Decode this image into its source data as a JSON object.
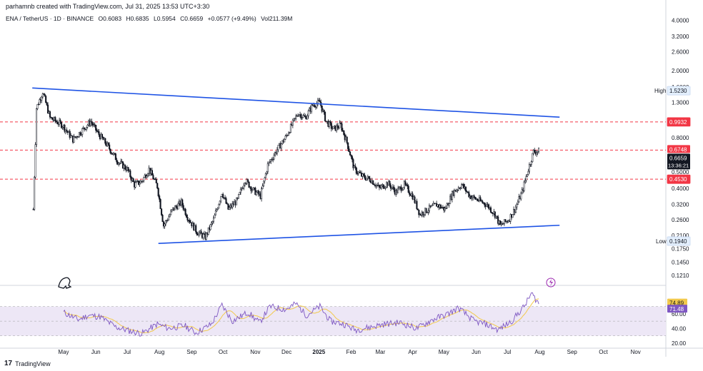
{
  "header": {
    "created_by": "parhamnb created with TradingView.com, Jul 31, 2025 13:53 UTC+3:30",
    "symbol": "ENA / TetherUS · 1D · BINANCE",
    "open": "O0.6083",
    "high": "H0.6835",
    "low": "L0.5954",
    "close": "C0.6659",
    "change": "+0.0577 (+9.49%)",
    "volume": "Vol211.39M"
  },
  "footer": {
    "brand": "TradingView"
  },
  "price_axis": {
    "ticks": [
      "4.0000",
      "3.2000",
      "2.6000",
      "2.0000",
      "1.6000",
      "1.3000",
      "0.8000",
      "0.5000",
      "0.4000",
      "0.3200",
      "0.2600",
      "0.2100",
      "0.1750",
      "0.1450",
      "0.1210"
    ]
  },
  "time_axis": {
    "ticks": [
      "May",
      "Jun",
      "Jul",
      "Aug",
      "Sep",
      "Oct",
      "Nov",
      "Dec",
      "2025",
      "Feb",
      "Mar",
      "Apr",
      "May",
      "Jun",
      "Jul",
      "Aug",
      "Sep",
      "Oct",
      "Nov"
    ]
  },
  "labels": {
    "high_label": "High",
    "high_value": "1.5230",
    "low_label": "Low",
    "low_value": "0.1940",
    "level_1": "0.9932",
    "level_2": "0.6748",
    "level_3": "0.4530",
    "last_price": "0.6659",
    "countdown": "13:36:21"
  },
  "rsi_axis": {
    "ticks": [
      "60.00",
      "40.00",
      "20.00"
    ],
    "rsi_value": "74.89",
    "ma_value": "71.48"
  },
  "colors": {
    "trendline": "#1e53e5",
    "level": "#f23645",
    "candle": "#131722",
    "rsi": "#7e57c2",
    "rsi_ma": "#f2c94c",
    "rsi_band": "#ede7f6"
  },
  "chart_data": {
    "type": "candlestick",
    "symbol": "ENA / TetherUS",
    "interval": "1D",
    "scale": "log",
    "ylim": [
      0.11,
      4.6
    ],
    "horizontal_levels": [
      0.9932,
      0.6748,
      0.453
    ],
    "high": 1.523,
    "low": 0.194,
    "last": {
      "open": 0.6083,
      "high": 0.6835,
      "low": 0.5954,
      "close": 0.6659,
      "change": 0.0577,
      "change_pct": 9.49
    },
    "trendlines": [
      {
        "name": "upper",
        "from": [
          "2024-04-01",
          1.58
        ],
        "to": [
          "2025-08-20",
          1.06
        ]
      },
      {
        "name": "lower",
        "from": [
          "2024-07-31",
          0.188
        ],
        "to": [
          "2025-08-20",
          0.241
        ]
      }
    ],
    "close_path": [
      [
        "2024-04-02",
        0.3
      ],
      [
        "2024-04-05",
        1.2
      ],
      [
        "2024-04-11",
        1.5
      ],
      [
        "2024-04-18",
        1.05
      ],
      [
        "2024-04-30",
        0.95
      ],
      [
        "2024-05-10",
        0.78
      ],
      [
        "2024-05-20",
        0.9
      ],
      [
        "2024-05-27",
        1.0
      ],
      [
        "2024-06-03",
        0.85
      ],
      [
        "2024-06-12",
        0.72
      ],
      [
        "2024-06-22",
        0.58
      ],
      [
        "2024-07-01",
        0.52
      ],
      [
        "2024-07-08",
        0.42
      ],
      [
        "2024-07-15",
        0.44
      ],
      [
        "2024-07-22",
        0.52
      ],
      [
        "2024-07-30",
        0.41
      ],
      [
        "2024-08-05",
        0.24
      ],
      [
        "2024-08-14",
        0.3
      ],
      [
        "2024-08-22",
        0.33
      ],
      [
        "2024-08-28",
        0.27
      ],
      [
        "2024-09-06",
        0.22
      ],
      [
        "2024-09-14",
        0.205
      ],
      [
        "2024-09-22",
        0.26
      ],
      [
        "2024-09-30",
        0.38
      ],
      [
        "2024-10-06",
        0.3
      ],
      [
        "2024-10-15",
        0.34
      ],
      [
        "2024-10-22",
        0.45
      ],
      [
        "2024-10-30",
        0.39
      ],
      [
        "2024-11-06",
        0.36
      ],
      [
        "2024-11-13",
        0.55
      ],
      [
        "2024-11-22",
        0.68
      ],
      [
        "2024-11-30",
        0.8
      ],
      [
        "2024-12-06",
        0.95
      ],
      [
        "2024-12-12",
        1.12
      ],
      [
        "2024-12-19",
        1.05
      ],
      [
        "2024-12-26",
        1.25
      ],
      [
        "2025-01-02",
        1.3
      ],
      [
        "2025-01-08",
        1.0
      ],
      [
        "2025-01-15",
        0.9
      ],
      [
        "2025-01-22",
        0.95
      ],
      [
        "2025-01-28",
        0.75
      ],
      [
        "2025-02-04",
        0.52
      ],
      [
        "2025-02-12",
        0.47
      ],
      [
        "2025-02-20",
        0.45
      ],
      [
        "2025-02-28",
        0.4
      ],
      [
        "2025-03-08",
        0.43
      ],
      [
        "2025-03-16",
        0.38
      ],
      [
        "2025-03-24",
        0.42
      ],
      [
        "2025-04-01",
        0.36
      ],
      [
        "2025-04-08",
        0.28
      ],
      [
        "2025-04-16",
        0.3
      ],
      [
        "2025-04-24",
        0.32
      ],
      [
        "2025-05-02",
        0.3
      ],
      [
        "2025-05-10",
        0.38
      ],
      [
        "2025-05-18",
        0.42
      ],
      [
        "2025-05-26",
        0.36
      ],
      [
        "2025-06-03",
        0.34
      ],
      [
        "2025-06-11",
        0.32
      ],
      [
        "2025-06-19",
        0.28
      ],
      [
        "2025-06-24",
        0.24
      ],
      [
        "2025-07-02",
        0.26
      ],
      [
        "2025-07-08",
        0.3
      ],
      [
        "2025-07-15",
        0.38
      ],
      [
        "2025-07-21",
        0.52
      ],
      [
        "2025-07-26",
        0.66
      ],
      [
        "2025-07-31",
        0.6659
      ]
    ],
    "rsi": {
      "ylim": [
        15,
        95
      ],
      "bands": [
        70,
        30
      ],
      "mid": 50,
      "last_rsi": 74.89,
      "last_ma": 71.48,
      "path": [
        [
          "2024-05-01",
          62
        ],
        [
          "2024-05-15",
          52
        ],
        [
          "2024-05-25",
          58
        ],
        [
          "2024-06-05",
          56
        ],
        [
          "2024-06-20",
          42
        ],
        [
          "2024-07-05",
          36
        ],
        [
          "2024-07-15",
          33
        ],
        [
          "2024-07-30",
          46
        ],
        [
          "2024-08-10",
          40
        ],
        [
          "2024-08-25",
          44
        ],
        [
          "2024-09-05",
          34
        ],
        [
          "2024-09-20",
          46
        ],
        [
          "2024-09-30",
          72
        ],
        [
          "2024-10-10",
          50
        ],
        [
          "2024-10-25",
          62
        ],
        [
          "2024-11-05",
          48
        ],
        [
          "2024-11-15",
          70
        ],
        [
          "2024-11-30",
          66
        ],
        [
          "2024-12-10",
          74
        ],
        [
          "2024-12-20",
          58
        ],
        [
          "2025-01-02",
          70
        ],
        [
          "2025-01-12",
          50
        ],
        [
          "2025-01-25",
          46
        ],
        [
          "2025-02-05",
          38
        ],
        [
          "2025-02-20",
          42
        ],
        [
          "2025-03-05",
          46
        ],
        [
          "2025-03-20",
          48
        ],
        [
          "2025-04-05",
          40
        ],
        [
          "2025-04-20",
          52
        ],
        [
          "2025-05-05",
          60
        ],
        [
          "2025-05-15",
          68
        ],
        [
          "2025-05-30",
          50
        ],
        [
          "2025-06-10",
          46
        ],
        [
          "2025-06-22",
          38
        ],
        [
          "2025-07-05",
          50
        ],
        [
          "2025-07-18",
          72
        ],
        [
          "2025-07-24",
          88
        ],
        [
          "2025-07-28",
          80
        ],
        [
          "2025-07-31",
          74.89
        ]
      ]
    }
  }
}
